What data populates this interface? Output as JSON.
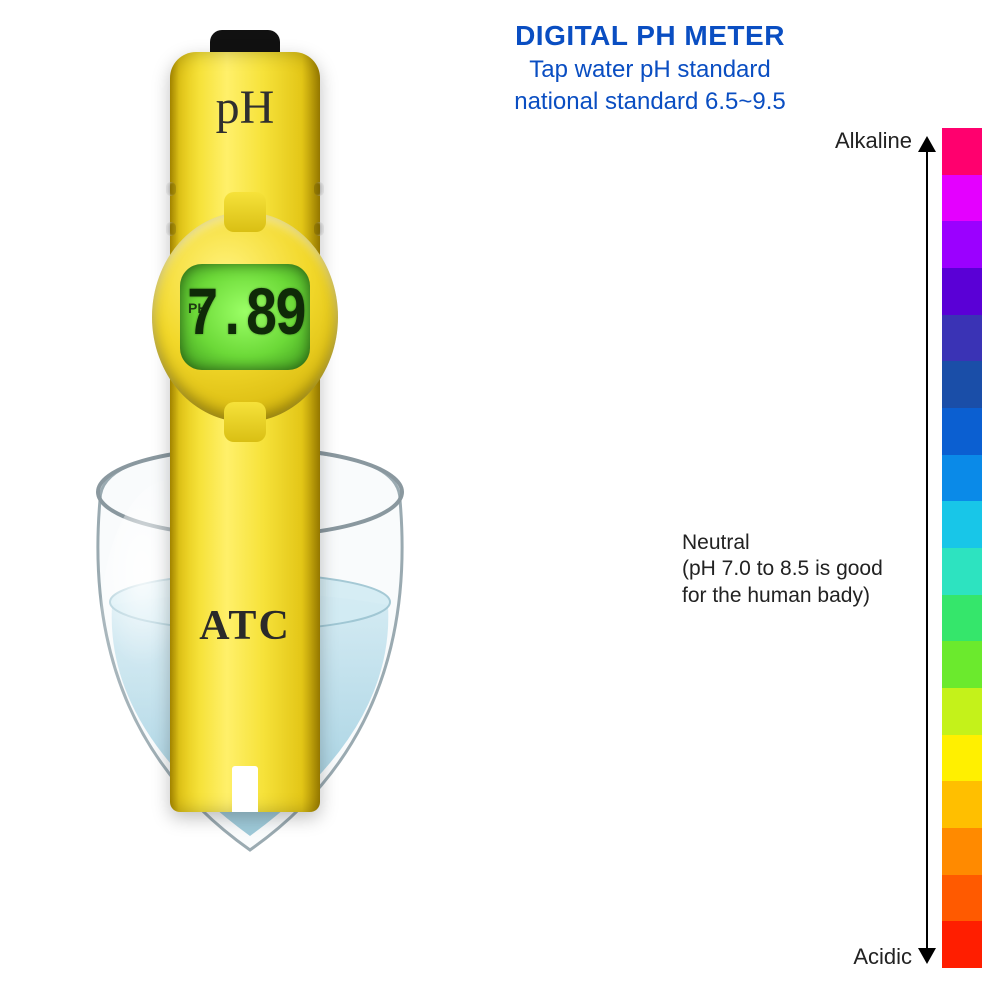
{
  "header": {
    "title": "DIGITAL PH METER",
    "subtitle1": "Tap water pH standard",
    "subtitle2": "national standard 6.5~9.5",
    "title_color": "#0a4ec2",
    "subtitle_color": "#0a4ec2",
    "title_fontsize": 28,
    "subtitle_fontsize": 24
  },
  "device": {
    "ph_label": "pH",
    "atc_label": "ATC",
    "lcd_prefix": "PH",
    "lcd_reading": "7.89",
    "body_color": "#f2d82a",
    "lcd_bg": "#6cd938",
    "lcd_text_color": "#0f2a08"
  },
  "glass": {
    "water_color": "#b7dcea",
    "rim_color": "#7a8a92"
  },
  "scale": {
    "type": "color-scale",
    "label_top": "Alkaline",
    "label_bottom": "Acidic",
    "label_mid_line1": "Neutral",
    "label_mid_line2": "(pH 7.0 to 8.5 is good",
    "label_mid_line3": "for the human bady)",
    "label_color": "#222222",
    "arrow_color": "#000000",
    "segment_colors": [
      "#ff006e",
      "#e400ff",
      "#9b00ff",
      "#5a00d6",
      "#3a33b5",
      "#1a4ea8",
      "#0b5fd1",
      "#0a8ae8",
      "#18c6e8",
      "#2de3c0",
      "#35e66b",
      "#6bea2d",
      "#c4f21a",
      "#fff000",
      "#ffbf00",
      "#ff8a00",
      "#ff5a00",
      "#ff1e00"
    ]
  }
}
